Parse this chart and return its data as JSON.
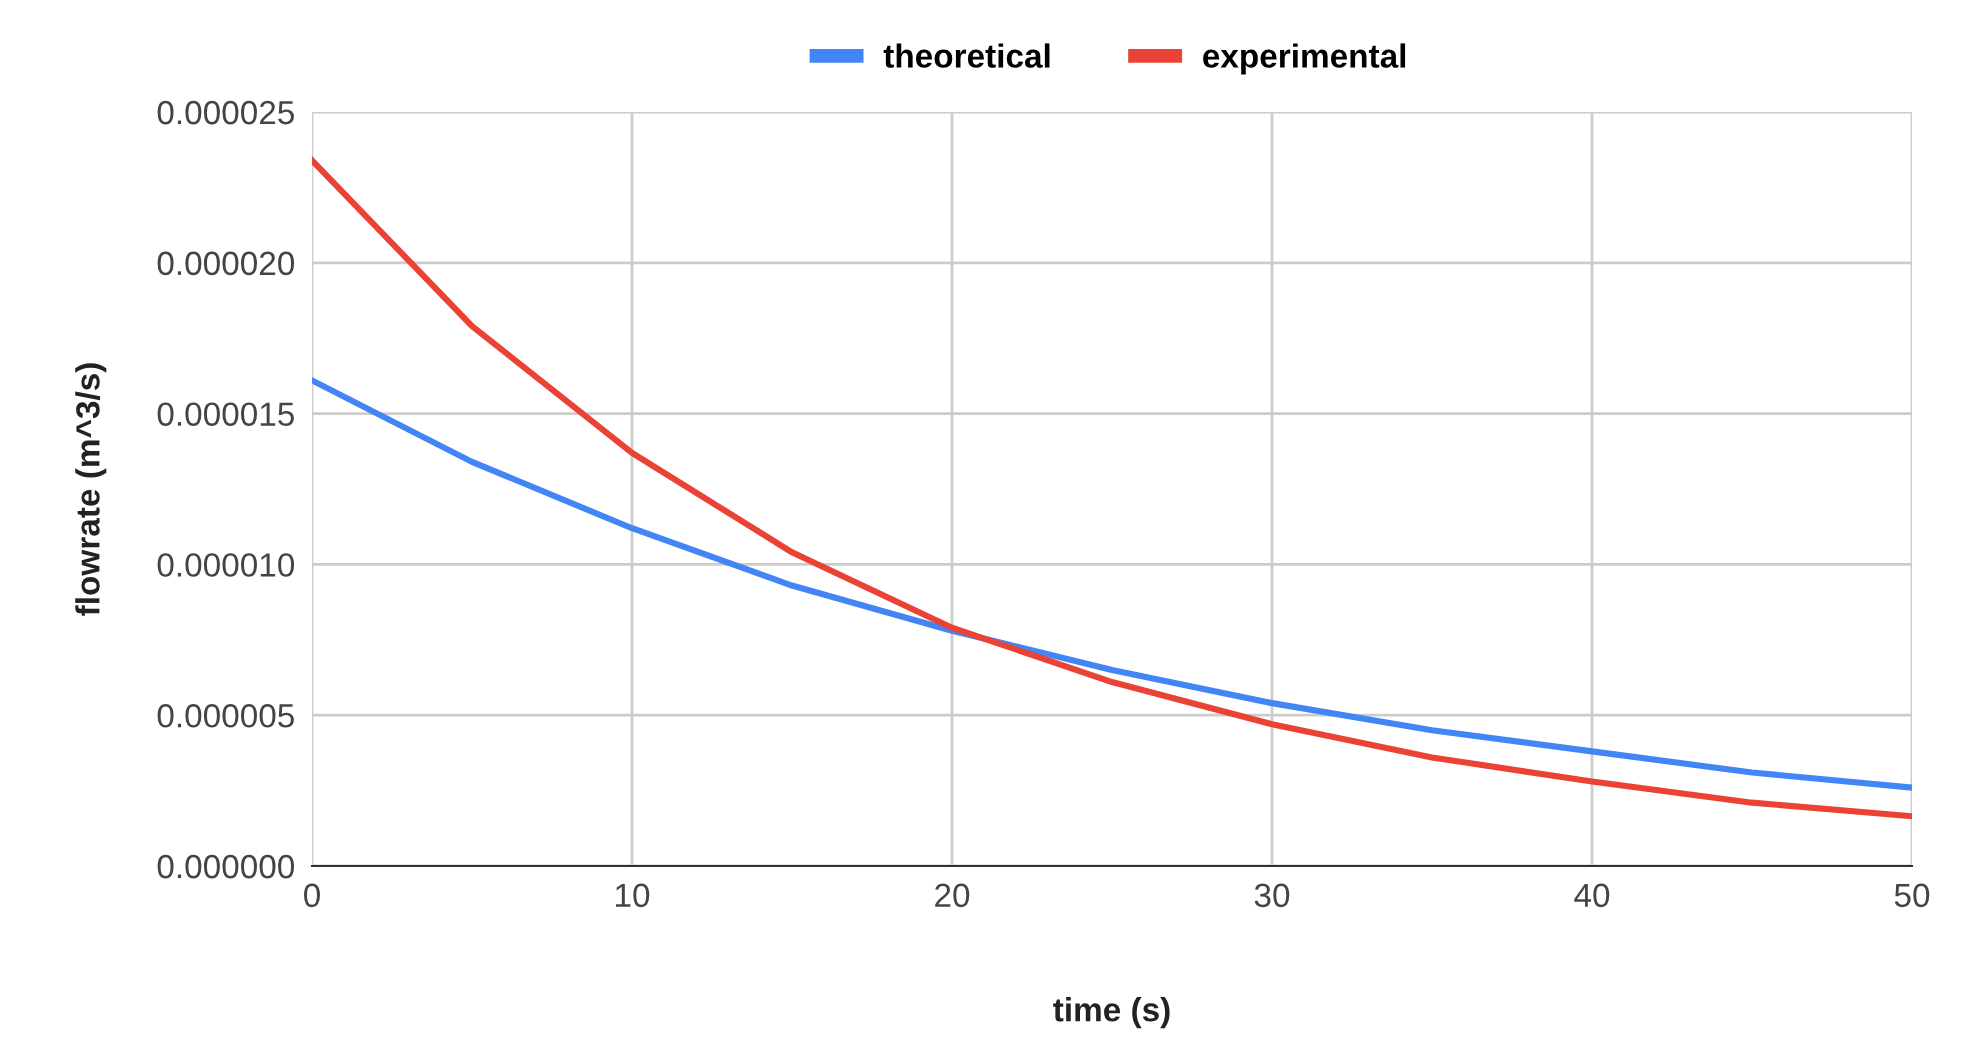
{
  "chart_data": {
    "type": "line",
    "xlabel": "time (s)",
    "ylabel": "flowrate (m^3/s)",
    "x": [
      0,
      5,
      10,
      15,
      20,
      25,
      30,
      35,
      40,
      45,
      50
    ],
    "series": [
      {
        "name": "theoretical",
        "color": "#4285f4",
        "values": [
          1.61e-05,
          1.34e-05,
          1.12e-05,
          9.3e-06,
          7.8e-06,
          6.5e-06,
          5.4e-06,
          4.5e-06,
          3.8e-06,
          3.1e-06,
          2.6e-06
        ]
      },
      {
        "name": "experimental",
        "color": "#ea4335",
        "values": [
          2.34e-05,
          1.79e-05,
          1.37e-05,
          1.04e-05,
          7.9e-06,
          6.1e-06,
          4.7e-06,
          3.6e-06,
          2.8e-06,
          2.1e-06,
          1.65e-06
        ]
      }
    ],
    "xlim": [
      0,
      50
    ],
    "xticks": [
      0,
      10,
      20,
      30,
      40,
      50
    ],
    "ylim": [
      0,
      2.5e-05
    ],
    "yticks": [
      {
        "value": 0,
        "label": "0.000000"
      },
      {
        "value": 5e-06,
        "label": "0.000005"
      },
      {
        "value": 1e-05,
        "label": "0.000010"
      },
      {
        "value": 1.5e-05,
        "label": "0.000015"
      },
      {
        "value": 2e-05,
        "label": "0.000020"
      },
      {
        "value": 2.5e-05,
        "label": "0.000025"
      }
    ],
    "grid": true,
    "legend": "top",
    "marker": "none",
    "line_style": "solid"
  }
}
